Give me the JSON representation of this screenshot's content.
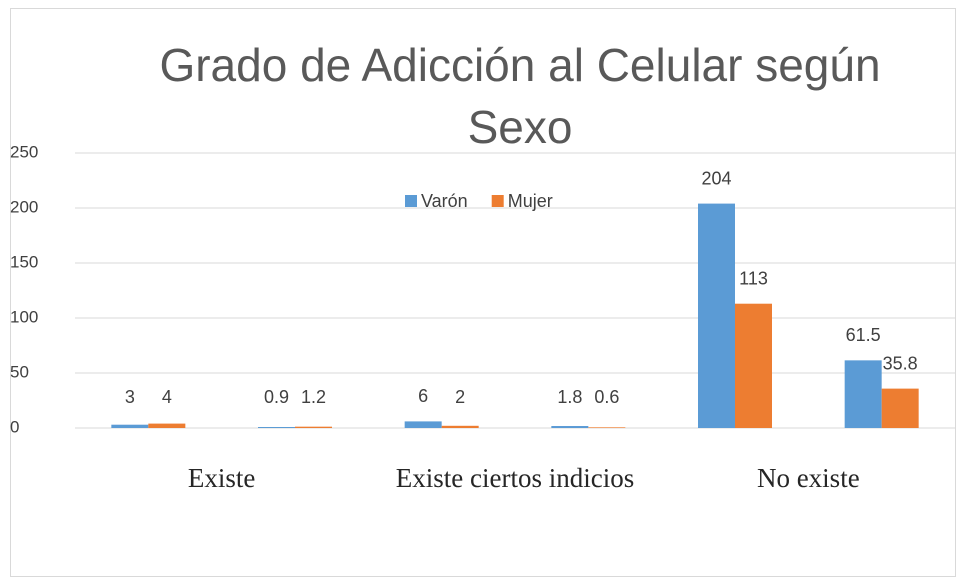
{
  "chart_data": {
    "type": "bar",
    "title": "Grado de Adicción al Celular según Sexo",
    "categories": [
      "Existe",
      null,
      "Existe ciertos indicios",
      null,
      "No existe",
      null
    ],
    "series": [
      {
        "name": "Varón",
        "color": "#5b9bd5",
        "values": [
          3,
          0.9,
          6,
          1.8,
          204,
          61.5
        ]
      },
      {
        "name": "Mujer",
        "color": "#ed7d31",
        "values": [
          4,
          1.2,
          2,
          0.6,
          113,
          35.8
        ]
      }
    ],
    "ylim": [
      0,
      250
    ],
    "yticks": [
      0,
      50,
      100,
      150,
      200,
      250
    ],
    "grid": true,
    "legend": "top"
  }
}
